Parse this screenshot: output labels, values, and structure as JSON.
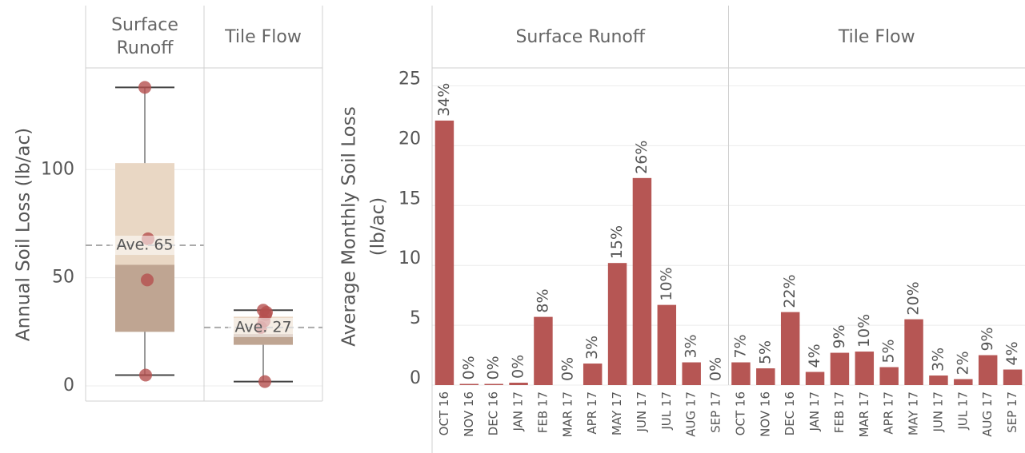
{
  "chart_data": [
    {
      "type": "box",
      "ylabel": "Annual Soil Loss (lb/ac)",
      "ylim": [
        -7,
        147
      ],
      "yticks": [
        0,
        50,
        100
      ],
      "grid": true,
      "point_color": "#b5504f",
      "upper_color": "#e9d7c4",
      "lower_color": "#bfa592",
      "groups": [
        {
          "name": "Surface Runoff",
          "min": 5,
          "q1": 25,
          "median": 56,
          "q3": 103,
          "max": 138,
          "mean": 65,
          "mean_label": "Ave. 65",
          "points": [
            138,
            68,
            49,
            5
          ]
        },
        {
          "name": "Tile Flow",
          "min": 2,
          "q1": 19,
          "median": 24,
          "q3": 32,
          "max": 35,
          "mean": 27,
          "mean_label": "Ave. 27",
          "points": [
            35,
            34,
            33,
            30,
            27,
            2
          ]
        }
      ]
    },
    {
      "type": "bar",
      "ylabel_lines": [
        "Average Monthly Soil Loss",
        "(lb/ac)"
      ],
      "ylim": [
        0,
        26.5
      ],
      "yticks": [
        0,
        5,
        10,
        15,
        20,
        25
      ],
      "grid": true,
      "color": "#b65654",
      "facets": [
        {
          "name": "Surface Runoff",
          "categories": [
            "OCT 16",
            "NOV 16",
            "DEC 16",
            "JAN 17",
            "FEB 17",
            "MAR 17",
            "APR 17",
            "MAY 17",
            "JUN 17",
            "JUL 17",
            "AUG 17",
            "SEP 17"
          ],
          "values": [
            22.1,
            0.1,
            0.1,
            0.2,
            5.7,
            0,
            1.8,
            10.2,
            17.3,
            6.7,
            1.9,
            0
          ],
          "share_labels": [
            "34%",
            "0%",
            "0%",
            "0%",
            "8%",
            "0%",
            "3%",
            "15%",
            "26%",
            "10%",
            "3%",
            "0%"
          ]
        },
        {
          "name": "Tile Flow",
          "categories": [
            "OCT 16",
            "NOV 16",
            "DEC 16",
            "JAN 17",
            "FEB 17",
            "MAR 17",
            "APR 17",
            "MAY 17",
            "JUN 17",
            "JUL 17",
            "AUG 17",
            "SEP 17"
          ],
          "values": [
            1.9,
            1.4,
            6.1,
            1.1,
            2.7,
            2.8,
            1.5,
            5.5,
            0.8,
            0.5,
            2.5,
            1.3
          ],
          "share_labels": [
            "7%",
            "5%",
            "22%",
            "4%",
            "9%",
            "10%",
            "5%",
            "20%",
            "3%",
            "2%",
            "9%",
            "4%"
          ]
        }
      ]
    }
  ]
}
